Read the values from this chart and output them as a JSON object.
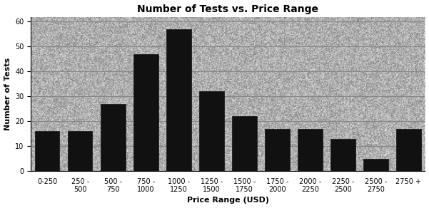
{
  "categories": [
    "0-250",
    "250 -\n500",
    "500 -\n750",
    "750 -\n1000",
    "1000 -\n1250",
    "1250 -\n1500",
    "1500 -\n1750",
    "1750 -\n2000",
    "2000 -\n2250",
    "2250 -\n2500",
    "2500 -\n2750",
    "2750 +"
  ],
  "values": [
    16,
    16,
    27,
    47,
    57,
    32,
    22,
    17,
    17,
    13,
    5,
    17
  ],
  "bar_color": "#111111",
  "title": "Number of Tests vs. Price Range",
  "xlabel": "Price Range (USD)",
  "ylabel": "Number of Tests",
  "ylim": [
    0,
    62
  ],
  "yticks": [
    0,
    10,
    20,
    30,
    40,
    50,
    60
  ],
  "fig_bg_color": "#ffffff",
  "plot_bg_color": "#c8c8c8",
  "grid_color": "#888888",
  "title_fontsize": 10,
  "label_fontsize": 8,
  "tick_fontsize": 7
}
